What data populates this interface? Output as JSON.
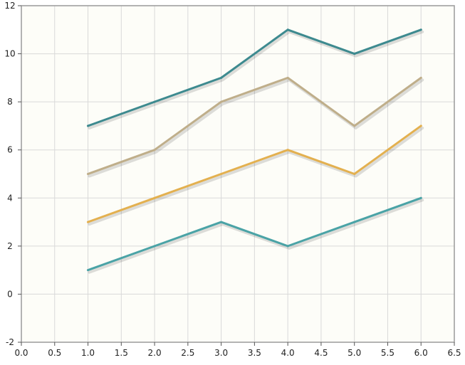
{
  "chart_data": {
    "type": "line",
    "title": "",
    "xlabel": "",
    "ylabel": "",
    "xlim": [
      0.0,
      6.5
    ],
    "ylim": [
      -2,
      12
    ],
    "x_ticks": [
      0.0,
      0.5,
      1.0,
      1.5,
      2.0,
      2.5,
      3.0,
      3.5,
      4.0,
      4.5,
      5.0,
      5.5,
      6.0,
      6.5
    ],
    "x_tick_labels": [
      "0.0",
      "0.5",
      "1.0",
      "1.5",
      "2.0",
      "2.5",
      "3.0",
      "3.5",
      "4.0",
      "4.5",
      "5.0",
      "5.5",
      "6.0",
      "6.5"
    ],
    "y_ticks": [
      -2,
      0,
      2,
      4,
      6,
      8,
      10,
      12
    ],
    "y_tick_labels": [
      "-2",
      "0",
      "2",
      "4",
      "6",
      "8",
      "10",
      "12"
    ],
    "grid": true,
    "legend": "none",
    "plot_background": "#fdfdf8",
    "axis_color": "#9a9a9a",
    "grid_color": "#d9d9d9",
    "x": [
      1,
      2,
      3,
      4,
      5,
      6
    ],
    "series": [
      {
        "values": [
          7,
          8,
          9,
          11,
          10,
          11
        ],
        "color": "#3d8a8f"
      },
      {
        "values": [
          5,
          6,
          8,
          9,
          7,
          9
        ],
        "color": "#bfae8a"
      },
      {
        "values": [
          3,
          4,
          5,
          6,
          5,
          7
        ],
        "color": "#e3b04f"
      },
      {
        "values": [
          1,
          2,
          3,
          2,
          3,
          4
        ],
        "color": "#4aa3a6"
      }
    ]
  }
}
